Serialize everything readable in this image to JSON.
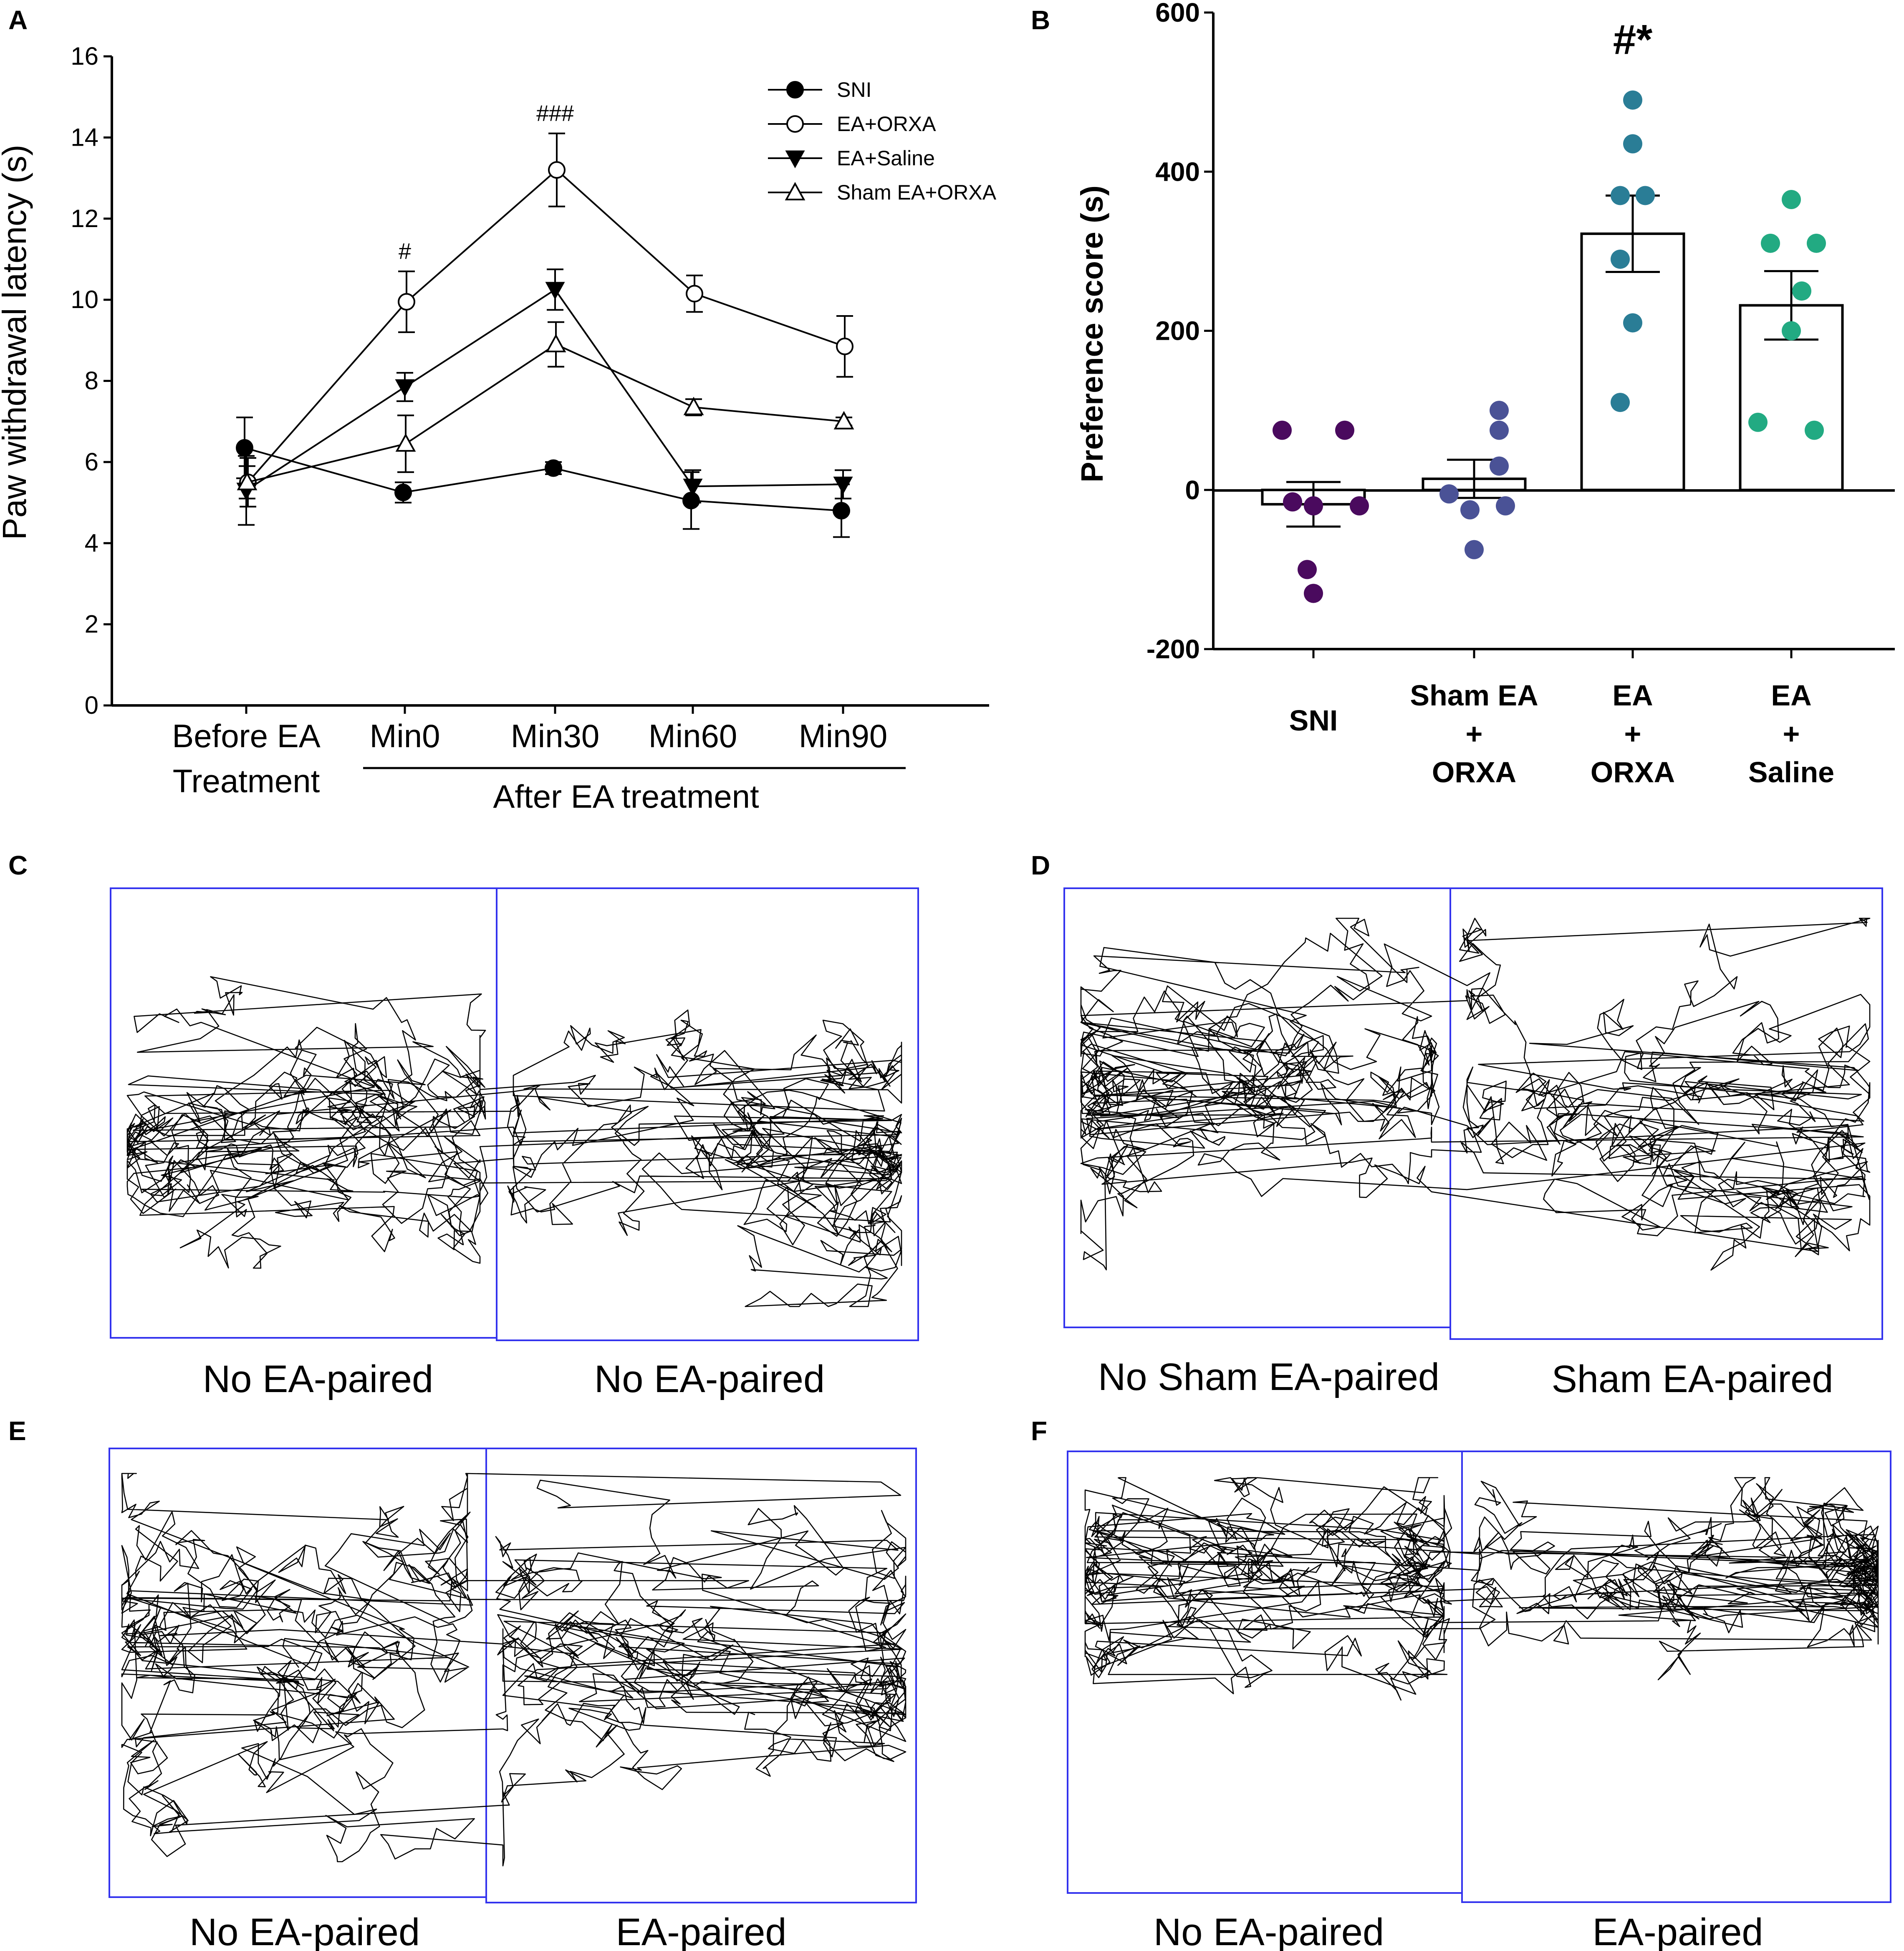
{
  "chart_data": [
    {
      "panel": "A",
      "type": "line",
      "ylabel": "Paw withdrawal latency (s)",
      "ylim": [
        0,
        16
      ],
      "yticks": [
        0,
        2,
        4,
        6,
        8,
        10,
        12,
        14,
        16
      ],
      "categories": [
        "Before EA\nTreatment",
        "Min0",
        "Min30",
        "Min60",
        "Min90"
      ],
      "category_lines": [
        [
          "Before EA",
          "Treatment"
        ],
        [
          "Min0"
        ],
        [
          "Min30"
        ],
        [
          "Min60"
        ],
        [
          "Min90"
        ]
      ],
      "group_label": "After EA treatment",
      "series": [
        {
          "name": "SNI",
          "marker": "circle-filled",
          "values": [
            6.35,
            5.25,
            5.85,
            5.05,
            4.8
          ],
          "errors": [
            0.75,
            0.25,
            0.15,
            0.7,
            0.65
          ]
        },
        {
          "name": "EA+ORXA",
          "marker": "circle-open",
          "values": [
            5.5,
            9.95,
            13.2,
            10.15,
            8.85
          ],
          "errors": [
            0.6,
            0.75,
            0.9,
            0.45,
            0.75
          ]
        },
        {
          "name": "EA+Saline",
          "marker": "triangle-down-filled",
          "values": [
            5.3,
            7.85,
            10.25,
            5.4,
            5.45
          ],
          "errors": [
            0.85,
            0.35,
            0.5,
            0.4,
            0.35
          ]
        },
        {
          "name": "Sham EA+ORXA",
          "marker": "triangle-up-open",
          "values": [
            5.5,
            6.45,
            8.9,
            7.35,
            7.0
          ],
          "errors": [
            0.4,
            0.7,
            0.55,
            0.2,
            0.1
          ]
        }
      ],
      "annotations": [
        {
          "text": "#",
          "category": "Min0"
        },
        {
          "text": "###",
          "category": "Min30"
        }
      ]
    },
    {
      "panel": "B",
      "type": "bar",
      "ylabel": "Preference score (s)",
      "ylim": [
        -200,
        600
      ],
      "yticks": [
        -200,
        0,
        200,
        400,
        600
      ],
      "categories": [
        "SNI",
        "Sham EA + ORXA",
        "EA + ORXA",
        "EA + Saline"
      ],
      "category_lines": [
        [
          "SNI"
        ],
        [
          "Sham EA",
          "+",
          "ORXA"
        ],
        [
          "EA",
          "+",
          "ORXA"
        ],
        [
          "EA",
          "+",
          "Saline"
        ]
      ],
      "values": [
        -18,
        14,
        322,
        232
      ],
      "errors": [
        28,
        24,
        48,
        43
      ],
      "point_colors": [
        "#4a0a5e",
        "#4a5296",
        "#2a7d96",
        "#22aa82"
      ],
      "points": [
        [
          75,
          75,
          -15,
          -20,
          -20,
          -100,
          -130
        ],
        [
          100,
          75,
          30,
          -5,
          -20,
          -25,
          -75
        ],
        [
          490,
          435,
          370,
          370,
          290,
          210,
          110
        ],
        [
          365,
          310,
          310,
          250,
          200,
          85,
          75
        ]
      ],
      "annotation": {
        "text": "#*",
        "category": "EA + ORXA"
      }
    }
  ],
  "tracking_panels": [
    {
      "panel": "C",
      "left_label": "No EA-paired",
      "right_label": "No EA-paired"
    },
    {
      "panel": "D",
      "left_label": "No Sham EA-paired",
      "right_label": "Sham EA-paired"
    },
    {
      "panel": "E",
      "left_label": "No EA-paired",
      "right_label": "EA-paired"
    },
    {
      "panel": "F",
      "left_label": "No EA-paired",
      "right_label": "EA-paired"
    }
  ],
  "colors": {
    "box": "#3333ee",
    "ink": "#000000"
  }
}
